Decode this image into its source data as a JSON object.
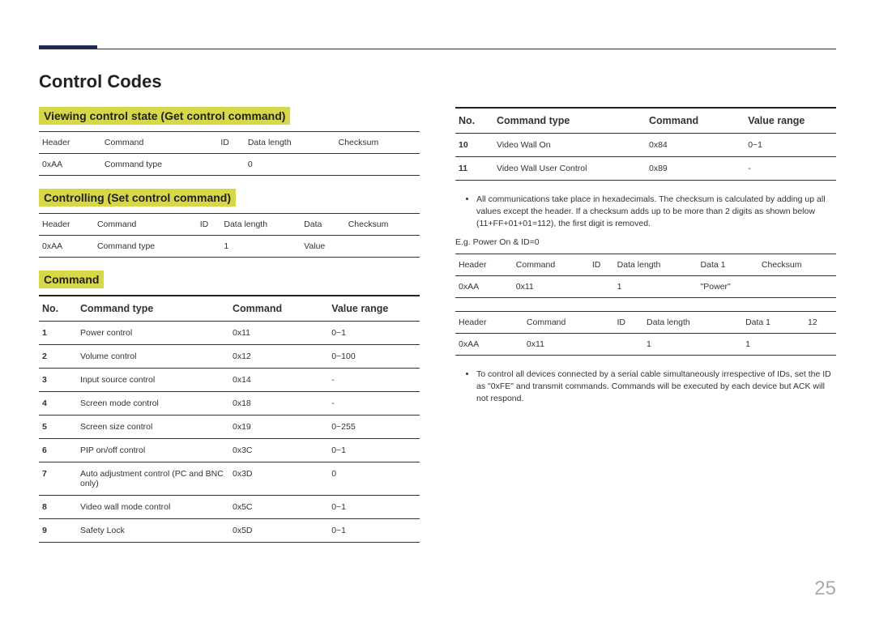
{
  "page": {
    "title": "Control Codes",
    "number": "25"
  },
  "left": {
    "section1": {
      "heading": "Viewing control state (Get control command)",
      "table": {
        "headers": [
          "Header",
          "Command",
          "ID",
          "Data length",
          "Checksum"
        ],
        "rows": [
          [
            "0xAA",
            "Command type",
            "",
            "0",
            ""
          ]
        ]
      }
    },
    "section2": {
      "heading": "Controlling (Set control command)",
      "table": {
        "headers": [
          "Header",
          "Command",
          "ID",
          "Data length",
          "Data",
          "Checksum"
        ],
        "rows": [
          [
            "0xAA",
            "Command type",
            "",
            "1",
            "Value",
            ""
          ]
        ]
      }
    },
    "section3": {
      "heading": "Command",
      "table": {
        "headers": [
          "No.",
          "Command type",
          "Command",
          "Value range"
        ],
        "rows": [
          [
            "1",
            "Power control",
            "0x11",
            "0~1"
          ],
          [
            "2",
            "Volume control",
            "0x12",
            "0~100"
          ],
          [
            "3",
            "Input source control",
            "0x14",
            "-"
          ],
          [
            "4",
            "Screen mode control",
            "0x18",
            "-"
          ],
          [
            "5",
            "Screen size control",
            "0x19",
            "0~255"
          ],
          [
            "6",
            "PIP on/off control",
            "0x3C",
            "0~1"
          ],
          [
            "7",
            "Auto adjustment control (PC and BNC only)",
            "0x3D",
            "0"
          ],
          [
            "8",
            "Video wall mode control",
            "0x5C",
            "0~1"
          ],
          [
            "9",
            "Safety Lock",
            "0x5D",
            "0~1"
          ]
        ]
      }
    }
  },
  "right": {
    "cmdtable": {
      "headers": [
        "No.",
        "Command type",
        "Command",
        "Value range"
      ],
      "rows": [
        [
          "10",
          "Video Wall On",
          "0x84",
          "0~1"
        ],
        [
          "11",
          "Video Wall User Control",
          "0x89",
          "-"
        ]
      ]
    },
    "note1": "All communications take place in hexadecimals. The checksum is calculated by adding up all values except the header. If a checksum adds up to be more than 2 digits as shown below (11+FF+01+01=112), the first digit is removed.",
    "example_label": "E.g. Power On & ID=0",
    "table1": {
      "headers": [
        "Header",
        "Command",
        "ID",
        "Data length",
        "Data 1",
        "Checksum"
      ],
      "rows": [
        [
          "0xAA",
          "0x11",
          "",
          "1",
          "\"Power\"",
          ""
        ]
      ]
    },
    "table2": {
      "headers": [
        "Header",
        "Command",
        "ID",
        "Data length",
        "Data 1",
        "12"
      ],
      "rows": [
        [
          "0xAA",
          "0x11",
          "",
          "1",
          "1",
          ""
        ]
      ]
    },
    "note2": "To control all devices connected by a serial cable simultaneously irrespective of IDs, set the ID as \"0xFE\" and transmit commands. Commands will be executed by each device but ACK will not respond."
  }
}
